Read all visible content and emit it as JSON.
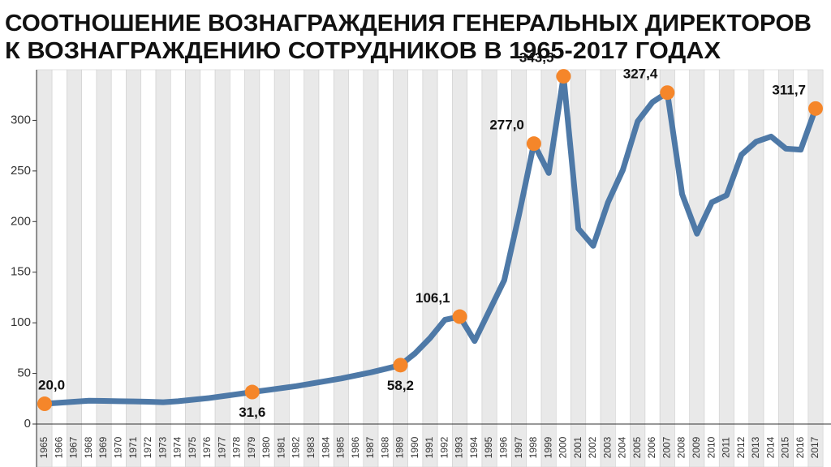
{
  "chart_data": {
    "type": "line",
    "title": [
      "СООТНОШЕНИЕ ВОЗНАГРАЖДЕНИЯ ГЕНЕРАЛЬНЫХ ДИРЕКТОРОВ",
      "К ВОЗНАГРАЖДЕНИЮ СОТРУДНИКОВ В 1965-2017 ГОДАХ"
    ],
    "categories": [
      "1965",
      "1966",
      "1967",
      "1968",
      "1969",
      "1970",
      "1971",
      "1972",
      "1973",
      "1974",
      "1975",
      "1976",
      "1977",
      "1978",
      "1979",
      "1980",
      "1981",
      "1982",
      "1983",
      "1984",
      "1985",
      "1986",
      "1987",
      "1988",
      "1989",
      "1990",
      "1991",
      "1992",
      "1993",
      "1994",
      "1995",
      "1996",
      "1997",
      "1998",
      "1999",
      "2000",
      "2001",
      "2002",
      "2003",
      "2004",
      "2005",
      "2006",
      "2007",
      "2008",
      "2009",
      "2010",
      "2011",
      "2012",
      "2013",
      "2014",
      "2015",
      "2016",
      "2017"
    ],
    "values": [
      20.0,
      21,
      22,
      23,
      22.8,
      22.5,
      22.3,
      22,
      21.5,
      22.5,
      24,
      25.5,
      27.5,
      29.5,
      31.6,
      33.5,
      35.5,
      37.5,
      40,
      42.5,
      45,
      48,
      51,
      54.5,
      58.2,
      70,
      85,
      103,
      106.1,
      82,
      112,
      142,
      207,
      277.0,
      248,
      343.5,
      193,
      176,
      219,
      251,
      299,
      318,
      327.4,
      227,
      188,
      219,
      226,
      266,
      279,
      284,
      272,
      271,
      311.7
    ],
    "value_labels": [
      "20,0",
      null,
      null,
      null,
      null,
      null,
      null,
      null,
      null,
      null,
      null,
      null,
      null,
      null,
      "31,6",
      null,
      null,
      null,
      null,
      null,
      null,
      null,
      null,
      null,
      "58,2",
      null,
      null,
      null,
      "106,1",
      null,
      null,
      null,
      null,
      "277,0",
      null,
      "343,5",
      null,
      null,
      null,
      null,
      null,
      null,
      "327,4",
      null,
      null,
      null,
      null,
      null,
      null,
      null,
      null,
      null,
      "311,7"
    ],
    "color": "#4e79a7",
    "highlight_color": "#f5862a",
    "ylim": [
      0,
      350
    ],
    "yticks": [
      0,
      50,
      100,
      150,
      200,
      250,
      300
    ]
  }
}
